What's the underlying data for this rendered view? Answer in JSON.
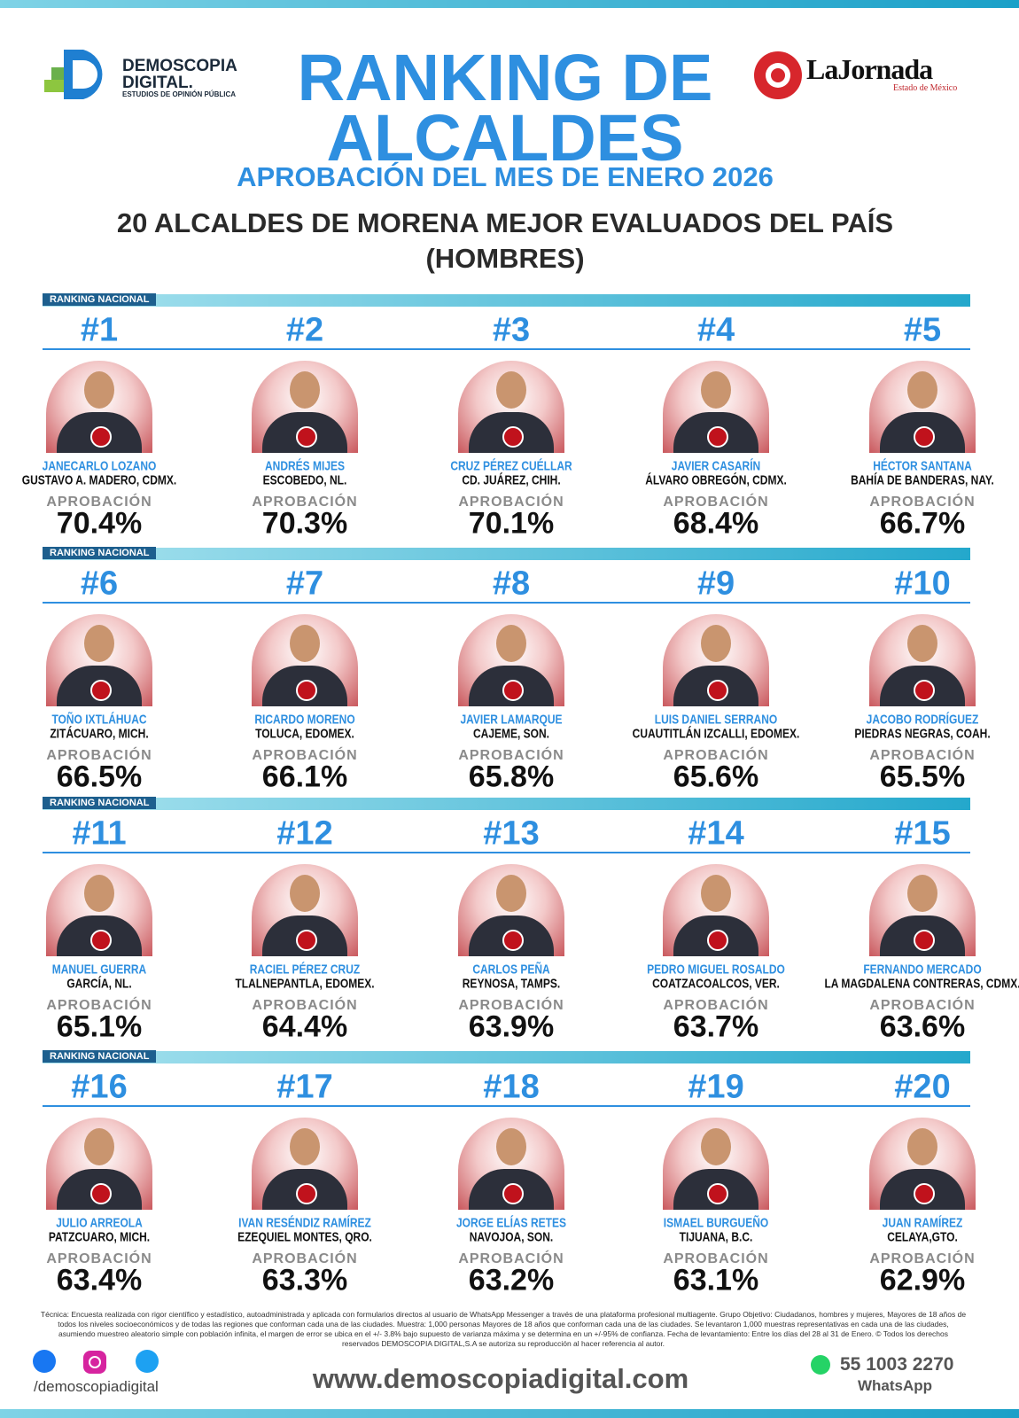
{
  "header": {
    "logo_left": {
      "line1": "DEMOSCOPIA",
      "line2": "DIGITAL.",
      "line3": "ESTUDIOS DE OPINIÓN PÚBLICA"
    },
    "logo_right": {
      "name": "LaJornada",
      "region": "Estado de México"
    },
    "title": "RANKING DE ALCALDES",
    "subtitle": "APROBACIÓN DEL MES DE ENERO 2026",
    "heading": "20 ALCALDES DE MORENA MEJOR EVALUADOS DEL PAÍS (HOMBRES)"
  },
  "sections": [
    {
      "label": "RANKING NACIONAL",
      "entries": [
        {
          "rank": "#1",
          "name": "JANECARLO LOZANO",
          "place": "GUSTAVO A. MADERO, CDMX.",
          "label": "APROBACIÓN",
          "approval": "70.4%"
        },
        {
          "rank": "#2",
          "name": "ANDRÉS MIJES",
          "place": "ESCOBEDO, NL.",
          "label": "APROBACIÓN",
          "approval": "70.3%"
        },
        {
          "rank": "#3",
          "name": "CRUZ PÉREZ CUÉLLAR",
          "place": "CD. JUÁREZ, CHIH.",
          "label": "APROBACIÓN",
          "approval": "70.1%"
        },
        {
          "rank": "#4",
          "name": "JAVIER CASARÍN",
          "place": "ÁLVARO OBREGÓN, CDMX.",
          "label": "APROBACIÓN",
          "approval": "68.4%"
        },
        {
          "rank": "#5",
          "name": "HÉCTOR SANTANA",
          "place": "BAHÍA DE BANDERAS, NAY.",
          "label": "APROBACIÓN",
          "approval": "66.7%"
        }
      ]
    },
    {
      "label": "RANKING NACIONAL",
      "entries": [
        {
          "rank": "#6",
          "name": "TOÑO IXTLÁHUAC",
          "place": "ZITÁCUARO, MICH.",
          "label": "APROBACIÓN",
          "approval": "66.5%"
        },
        {
          "rank": "#7",
          "name": "RICARDO MORENO",
          "place": "TOLUCA, EDOMEX.",
          "label": "APROBACIÓN",
          "approval": "66.1%"
        },
        {
          "rank": "#8",
          "name": "JAVIER LAMARQUE",
          "place": "CAJEME, SON.",
          "label": "APROBACIÓN",
          "approval": "65.8%"
        },
        {
          "rank": "#9",
          "name": "LUIS DANIEL SERRANO",
          "place": "CUAUTITLÁN IZCALLI, EDOMEX.",
          "label": "APROBACIÓN",
          "approval": "65.6%"
        },
        {
          "rank": "#10",
          "name": "JACOBO RODRÍGUEZ",
          "place": "PIEDRAS NEGRAS, COAH.",
          "label": "APROBACIÓN",
          "approval": "65.5%"
        }
      ]
    },
    {
      "label": "RANKING NACIONAL",
      "entries": [
        {
          "rank": "#11",
          "name": "MANUEL GUERRA",
          "place": "GARCÍA, NL.",
          "label": "APROBACIÓN",
          "approval": "65.1%"
        },
        {
          "rank": "#12",
          "name": "RACIEL PÉREZ CRUZ",
          "place": "TLALNEPANTLA, EDOMEX.",
          "label": "APROBACIÓN",
          "approval": "64.4%"
        },
        {
          "rank": "#13",
          "name": "CARLOS PEÑA",
          "place": "REYNOSA, TAMPS.",
          "label": "APROBACIÓN",
          "approval": "63.9%"
        },
        {
          "rank": "#14",
          "name": "PEDRO MIGUEL ROSALDO",
          "place": "COATZACOALCOS, VER.",
          "label": "APROBACIÓN",
          "approval": "63.7%"
        },
        {
          "rank": "#15",
          "name": "FERNANDO MERCADO",
          "place": "LA MAGDALENA CONTRERAS, CDMX.",
          "label": "APROBACIÓN",
          "approval": "63.6%"
        }
      ]
    },
    {
      "label": "RANKING NACIONAL",
      "entries": [
        {
          "rank": "#16",
          "name": "JULIO ARREOLA",
          "place": "PATZCUARO, MICH.",
          "label": "APROBACIÓN",
          "approval": "63.4%"
        },
        {
          "rank": "#17",
          "name": "IVAN RESÉNDIZ RAMÍREZ",
          "place": "EZEQUIEL MONTES, QRO.",
          "label": "APROBACIÓN",
          "approval": "63.3%"
        },
        {
          "rank": "#18",
          "name": "JORGE ELÍAS RETES",
          "place": "NAVOJOA, SON.",
          "label": "APROBACIÓN",
          "approval": "63.2%"
        },
        {
          "rank": "#19",
          "name": "ISMAEL BURGUEÑO",
          "place": "TIJUANA, B.C.",
          "label": "APROBACIÓN",
          "approval": "63.1%"
        },
        {
          "rank": "#20",
          "name": "JUAN RAMÍREZ",
          "place": "CELAYA,GTO.",
          "label": "APROBACIÓN",
          "approval": "62.9%"
        }
      ]
    }
  ],
  "footer": {
    "note": "Técnica: Encuesta realizada con rigor científico y estadístico, autoadministrada y aplicada con formularios directos al usuario de WhatsApp Messenger a través de una plataforma profesional multiagente. Grupo Objetivo: Ciudadanos, hombres y mujeres, Mayores de 18 años de todos los niveles socioeconómicos y de todas las regiones que conforman cada una de las ciudades. Muestra: 1,000 personas Mayores de 18 años que conforman cada una de las ciudades. Se levantaron 1,000 muestras representativas en cada una de las ciudades, asumiendo muestreo aleatorio simple con población infinita, el margen de error se ubica en el +/- 3.8% bajo supuesto de varianza máxima y se determina en un +/-95% de confianza. Fecha de levantamiento: Entre los días del 28 al 31 de Enero. © Todos los derechos reservados DEMOSCOPIA DIGITAL,S.A se autoriza su reproducción al hacer referencia al autor.",
    "social": "/demoscopiadigital",
    "website": "www.demoscopiadigital.com",
    "phone": "55 1003 2270",
    "whatsapp": "WhatsApp"
  }
}
